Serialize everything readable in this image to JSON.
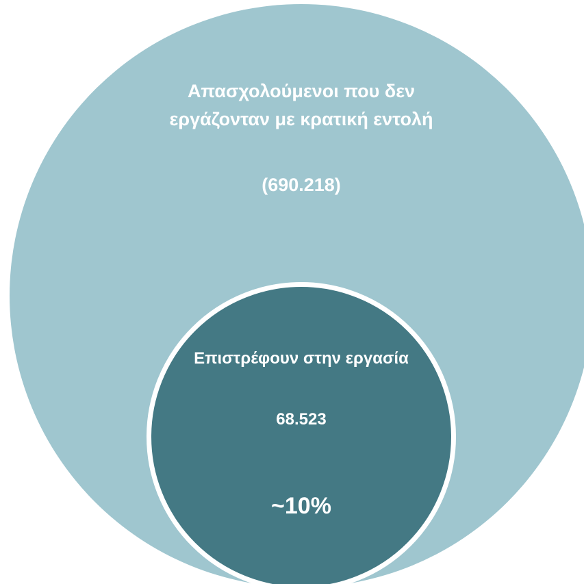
{
  "colors": {
    "outer_fill": "#9fc6cf",
    "inner_fill": "#447984",
    "ring": "#ffffff",
    "text": "#ffffff"
  },
  "outer": {
    "title": "Απασχολούμενοι που δεν εργάζονταν με κρατική εντολή",
    "count": "(690.218)"
  },
  "inner": {
    "title": "Επιστρέφουν στην εργασία",
    "count": "68.523",
    "percent": "~10%"
  }
}
